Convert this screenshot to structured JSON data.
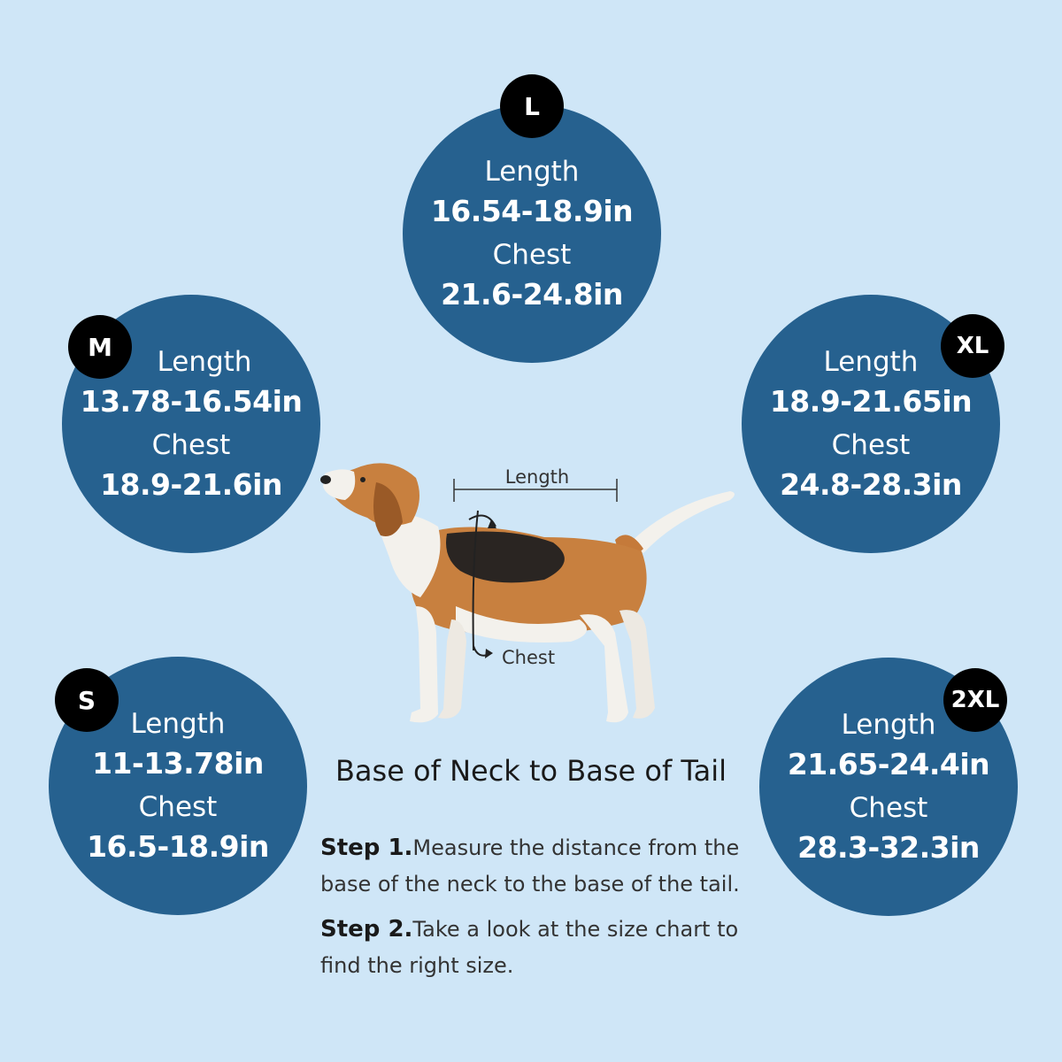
{
  "sizes": [
    {
      "badge": "L",
      "length_label": "Length",
      "length_value": "16.54-18.9in",
      "chest_label": "Chest",
      "chest_value": "21.6-24.8in"
    },
    {
      "badge": "M",
      "length_label": "Length",
      "length_value": "13.78-16.54in",
      "chest_label": "Chest",
      "chest_value": "18.9-21.6in"
    },
    {
      "badge": "XL",
      "length_label": "Length",
      "length_value": "18.9-21.65in",
      "chest_label": "Chest",
      "chest_value": "24.8-28.3in"
    },
    {
      "badge": "S",
      "length_label": "Length",
      "length_value": "11-13.78in",
      "chest_label": "Chest",
      "chest_value": "16.5-18.9in"
    },
    {
      "badge": "2XL",
      "length_label": "Length",
      "length_value": "21.65-24.4in",
      "chest_label": "Chest",
      "chest_value": "28.3-32.3in"
    }
  ],
  "figure": {
    "length_label": "Length",
    "chest_label": "Chest"
  },
  "instructions": {
    "title": "Base of Neck to Base of Tail",
    "step1_label": "Step 1.",
    "step1_text": "Measure the distance from the base of the neck to the base of the tail.",
    "step2_label": "Step 2.",
    "step2_text": "Take a look at the size chart to find the right size."
  },
  "colors": {
    "background": "#cfe6f7",
    "circle": "#26618f",
    "badge": "#000000",
    "text": "#ffffff"
  }
}
